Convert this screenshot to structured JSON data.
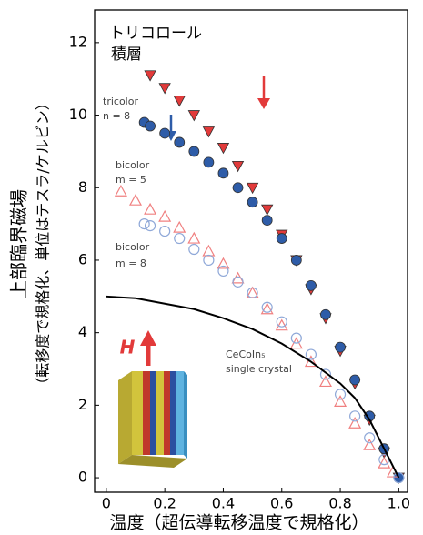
{
  "chart_data": {
    "type": "scatter",
    "title_lines": [
      "トリコロール",
      "積層"
    ],
    "x_label": "温度（超伝導転移温度で規格化）",
    "y_label_lines": [
      "上部臨界磁場",
      "（転移度で規格化、単位はテスラ/ケルビン）"
    ],
    "icon_label": "H",
    "xlim": [
      -0.04,
      1.03
    ],
    "ylim": [
      -0.4,
      12.9
    ],
    "xticks": [
      0,
      0.2,
      0.4,
      0.6,
      0.8,
      {
        "value": 1,
        "label": "1.0"
      }
    ],
    "yticks": [
      0,
      2,
      4,
      6,
      8,
      10,
      12
    ],
    "series": [
      {
        "label_lines": [
          "tricolor",
          "n = 8"
        ],
        "marker": "triangle-down",
        "filled": true,
        "color": "#e23a3a",
        "x": [
          0.15,
          0.2,
          0.25,
          0.3,
          0.35,
          0.4,
          0.45,
          0.5,
          0.55,
          0.6,
          0.65,
          0.7,
          0.75,
          0.8,
          0.85,
          0.9,
          0.95,
          1.0
        ],
        "values": [
          11.1,
          10.75,
          10.4,
          10.0,
          9.55,
          9.1,
          8.6,
          8.0,
          7.4,
          6.7,
          6.0,
          5.2,
          4.4,
          3.5,
          2.6,
          1.6,
          0.7,
          0.0
        ]
      },
      {
        "label_lines": [
          "bicolor",
          "m = 5"
        ],
        "marker": "circle",
        "filled": true,
        "color": "#2e5ca8",
        "x": [
          0.13,
          0.15,
          0.2,
          0.25,
          0.3,
          0.35,
          0.4,
          0.45,
          0.5,
          0.55,
          0.6,
          0.65,
          0.7,
          0.75,
          0.8,
          0.85,
          0.9,
          0.95,
          1.0
        ],
        "values": [
          9.8,
          9.7,
          9.5,
          9.25,
          9.0,
          8.7,
          8.4,
          8.0,
          7.6,
          7.1,
          6.6,
          6.0,
          5.3,
          4.5,
          3.6,
          2.7,
          1.7,
          0.8,
          0.0
        ]
      },
      {
        "marker": "triangle-up",
        "filled": false,
        "color": "#f08080",
        "x": [
          0.05,
          0.1,
          0.15,
          0.2,
          0.25,
          0.3,
          0.35,
          0.4,
          0.45,
          0.5,
          0.55,
          0.6,
          0.65,
          0.7,
          0.75,
          0.8,
          0.85,
          0.9,
          0.95,
          0.98
        ],
        "values": [
          7.9,
          7.65,
          7.4,
          7.2,
          6.9,
          6.6,
          6.25,
          5.9,
          5.5,
          5.1,
          4.65,
          4.2,
          3.7,
          3.2,
          2.65,
          2.1,
          1.5,
          0.9,
          0.4,
          0.15
        ]
      },
      {
        "label_lines": [
          "bicolor",
          "m = 8"
        ],
        "marker": "circle",
        "filled": false,
        "color": "#8fa8d8",
        "x": [
          0.13,
          0.15,
          0.2,
          0.25,
          0.3,
          0.35,
          0.4,
          0.45,
          0.5,
          0.55,
          0.6,
          0.65,
          0.7,
          0.75,
          0.8,
          0.85,
          0.9,
          0.95,
          1.0
        ],
        "values": [
          7.0,
          6.95,
          6.8,
          6.6,
          6.3,
          6.0,
          5.7,
          5.4,
          5.1,
          4.7,
          4.3,
          3.85,
          3.4,
          2.85,
          2.3,
          1.7,
          1.1,
          0.5,
          0.0
        ]
      },
      {
        "label_lines": [
          "CeCoIn₅",
          "single crystal"
        ],
        "marker": "line",
        "color": "#000000",
        "x": [
          0,
          0.1,
          0.2,
          0.3,
          0.4,
          0.5,
          0.6,
          0.7,
          0.8,
          0.85,
          0.9,
          0.95,
          1.0
        ],
        "values": [
          5.0,
          4.95,
          4.8,
          4.65,
          4.4,
          4.1,
          3.7,
          3.2,
          2.6,
          2.2,
          1.6,
          0.8,
          0.0
        ]
      }
    ]
  }
}
